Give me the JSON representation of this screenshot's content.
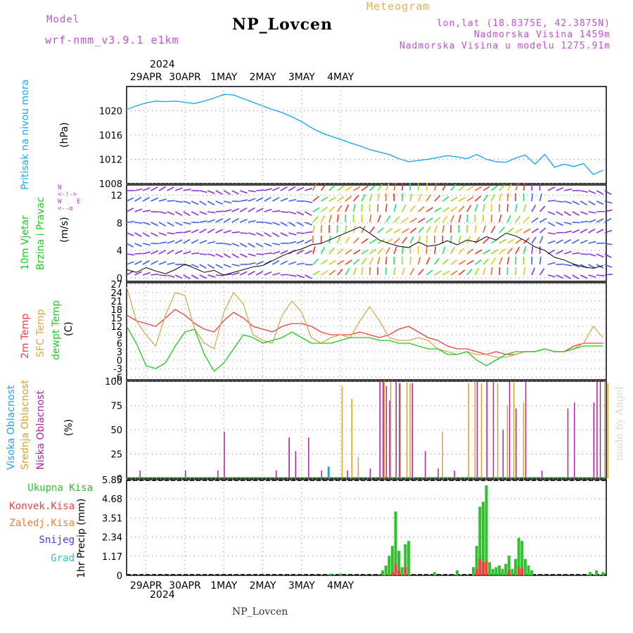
{
  "header": {
    "model_label": "Model",
    "model_name": "wrf-nmm_v3.9.1 e1km",
    "station": "NP_Lovcen",
    "meteogram": "Meteogram",
    "lonlat": "lon,lat (18.8375E, 42.3875N)",
    "elevation": "Nadmorska Visina 1459m",
    "model_elevation": "Nadmorska Visina u modelu 1275.91m",
    "year_top": "2024",
    "year_bottom": "2024",
    "footer_station": "NP_Lovcen",
    "credit": "made by Angel"
  },
  "axis_days": [
    "29APR",
    "30APR",
    "1MAY",
    "2MAY",
    "3MAY",
    "4MAY"
  ],
  "panel_labels": {
    "pressure": [
      "Pritisak na nivou mora",
      "(hPa)"
    ],
    "wind": [
      "10m Vjetar",
      "Brzina i Pravac",
      "(m/s)"
    ],
    "compass": "N\n<-!->\nW    E\n<--α",
    "temp": [
      "2m Temp",
      "SFC Temp",
      "dewpt Temp",
      "(C)"
    ],
    "cloud": [
      "Visoka Oblacnost",
      "Srednja Oblacnost",
      "Niska Oblacnost",
      "(%)"
    ],
    "precip_unit": "1hr Precip (mm)",
    "precip_legend": [
      "Ukupna Kisa",
      "Konvek.Kisa",
      "Zaledj.Kisa",
      "Snijeg",
      "Grad"
    ]
  },
  "colors": {
    "pressure": "#1eaaf0",
    "t2m": "#f04040",
    "tsfc": "#d8a850",
    "dewpt": "#22c822",
    "cloud_high": "#28a0f0",
    "cloud_mid": "#e0a030",
    "cloud_low": "#b020a0",
    "precip_total": "#30c030",
    "precip_conv": "#f04040",
    "precip_frz": "#f08030",
    "precip_snow": "#4040f0",
    "precip_grad": "#30c0c0",
    "purple": "#c050d8",
    "gold": "#e0b060",
    "green_label": "#22c822"
  },
  "chart_data": [
    {
      "type": "line",
      "name": "pressure",
      "ylim": [
        1008,
        1024
      ],
      "yticks": [
        1008,
        1012,
        1016,
        1020
      ],
      "x_hours": [
        0,
        6,
        12,
        18,
        24,
        30,
        36,
        42,
        48,
        54,
        60,
        66,
        72,
        78,
        84,
        90,
        96,
        102,
        108,
        114,
        120,
        126,
        132,
        138,
        144,
        150,
        156,
        162,
        168,
        174,
        180,
        186,
        192,
        198,
        204,
        210,
        216,
        222,
        228,
        234,
        240,
        246,
        252,
        258,
        264,
        270,
        276,
        282,
        288,
        294
      ],
      "values": [
        1020.2,
        1020.8,
        1021.3,
        1021.6,
        1021.5,
        1021.6,
        1021.4,
        1021.2,
        1021.6,
        1022.1,
        1022.7,
        1022.6,
        1022.0,
        1021.4,
        1020.8,
        1020.2,
        1019.7,
        1019.0,
        1018.2,
        1017.2,
        1016.4,
        1015.8,
        1015.3,
        1014.7,
        1014.2,
        1013.6,
        1013.2,
        1012.8,
        1012.1,
        1011.6,
        1011.8,
        1012.0,
        1012.3,
        1012.6,
        1012.4,
        1012.1,
        1012.8,
        1012.0,
        1011.6,
        1011.5,
        1012.2,
        1012.7,
        1011.2,
        1012.8,
        1010.7,
        1011.2,
        1010.8,
        1011.3,
        1009.5,
        1010.2
      ]
    },
    {
      "type": "line",
      "name": "wind_speed",
      "ylim": [
        -0.5,
        13.5
      ],
      "yticks": [
        0,
        4,
        8,
        12
      ],
      "x_hours": [
        0,
        6,
        12,
        18,
        24,
        30,
        36,
        42,
        48,
        54,
        60,
        66,
        72,
        78,
        84,
        90,
        96,
        102,
        108,
        114,
        120,
        126,
        132,
        138,
        144,
        150,
        156,
        162,
        168,
        174,
        180,
        186,
        192,
        198,
        204,
        210,
        216,
        222,
        228,
        234,
        240,
        246,
        252,
        258,
        264,
        270,
        276,
        282,
        288,
        294
      ],
      "values": [
        1.2,
        0.8,
        1.5,
        1.0,
        0.6,
        1.2,
        2.0,
        1.4,
        0.8,
        1.1,
        0.4,
        0.8,
        1.2,
        1.6,
        1.8,
        2.5,
        3.2,
        3.8,
        4.2,
        4.8,
        5.0,
        5.6,
        6.2,
        6.8,
        7.4,
        6.5,
        5.5,
        5.0,
        4.6,
        4.4,
        5.2,
        4.6,
        4.8,
        5.4,
        4.8,
        5.5,
        5.2,
        6.0,
        5.5,
        6.5,
        6.1,
        5.4,
        4.5,
        4.0,
        3.0,
        2.6,
        2.0,
        1.6,
        1.4,
        1.8
      ]
    },
    {
      "type": "line",
      "name": "temperature",
      "ylim": [
        -7,
        27.5
      ],
      "yticks": [
        -6,
        -3,
        0,
        3,
        6,
        9,
        12,
        15,
        18,
        21,
        24,
        27
      ],
      "x_hours": [
        0,
        6,
        12,
        18,
        24,
        30,
        36,
        42,
        48,
        54,
        60,
        66,
        72,
        78,
        84,
        90,
        96,
        102,
        108,
        114,
        120,
        126,
        132,
        138,
        144,
        150,
        156,
        162,
        168,
        174,
        180,
        186,
        192,
        198,
        204,
        210,
        216,
        222,
        228,
        234,
        240,
        246,
        252,
        258,
        264,
        270,
        276,
        282,
        288,
        294
      ],
      "series": [
        {
          "name": "2m Temp",
          "values": [
            16,
            14,
            13,
            12,
            15,
            18,
            16,
            13,
            11,
            10,
            14,
            17,
            15,
            12,
            11,
            10,
            12,
            13,
            13,
            12,
            10,
            9,
            9,
            9,
            10,
            9,
            8,
            9,
            11,
            12,
            10,
            8,
            7,
            5,
            4,
            4,
            3,
            2,
            3,
            2,
            2,
            3,
            3,
            4,
            3,
            3,
            5,
            6,
            6,
            6
          ]
        },
        {
          "name": "SFC Temp",
          "values": [
            26,
            14,
            9,
            5,
            16,
            24,
            23,
            11,
            6,
            4,
            17,
            24,
            20,
            9,
            7,
            6,
            16,
            21,
            17,
            8,
            6,
            8,
            9,
            8,
            14,
            19,
            14,
            8,
            7,
            7,
            8,
            7,
            4,
            3,
            2,
            3,
            2,
            2,
            1,
            1,
            2,
            3,
            3,
            4,
            3,
            3,
            4,
            6,
            12,
            8
          ]
        },
        {
          "name": "dewpt Temp",
          "values": [
            12,
            6,
            -2,
            -3,
            -1,
            5,
            10,
            11,
            2,
            -4,
            -1,
            4,
            9,
            8,
            6,
            7,
            8,
            10,
            8,
            6,
            6,
            6,
            7,
            8,
            8,
            8,
            7,
            7,
            6,
            6,
            5,
            4,
            4,
            2,
            2,
            3,
            0,
            -2,
            0,
            2,
            3,
            3,
            3,
            4,
            3,
            3,
            4,
            5,
            5,
            5
          ]
        }
      ]
    },
    {
      "type": "bar",
      "name": "cloud_cover",
      "ylim": [
        0,
        100
      ],
      "yticks": [
        0,
        25,
        50,
        75,
        100
      ],
      "series": [
        {
          "name": "Niska Oblacnost",
          "points": [
            [
              8,
              8
            ],
            [
              36,
              8
            ],
            [
              60,
              48
            ],
            [
              56,
              8
            ],
            [
              92,
              8
            ],
            [
              100,
              40
            ],
            [
              104,
              28
            ],
            [
              100,
              42
            ],
            [
              112,
              42
            ],
            [
              120,
              8
            ],
            [
              136,
              8
            ],
            [
              150,
              10
            ],
            [
              156,
              100
            ],
            [
              158,
              100
            ],
            [
              160,
              95
            ],
            [
              162,
              80
            ],
            [
              166,
              100
            ],
            [
              168,
              98
            ],
            [
              176,
              98
            ],
            [
              184,
              28
            ],
            [
              192,
              10
            ],
            [
              202,
              8
            ],
            [
              216,
              100
            ],
            [
              222,
              100
            ],
            [
              226,
              100
            ],
            [
              232,
              50
            ],
            [
              236,
              100
            ],
            [
              240,
              72
            ],
            [
              246,
              100
            ],
            [
              256,
              8
            ],
            [
              272,
              72
            ],
            [
              276,
              78
            ],
            [
              288,
              78
            ],
            [
              290,
              100
            ],
            [
              292,
              100
            ]
          ]
        },
        {
          "name": "Srednja Oblacnost",
          "points": [
            [
              132,
              95
            ],
            [
              138,
              82
            ],
            [
              142,
              22
            ],
            [
              158,
              100
            ],
            [
              162,
              100
            ],
            [
              168,
              98
            ],
            [
              172,
              100
            ],
            [
              174,
              98
            ],
            [
              194,
              48
            ],
            [
              210,
              98
            ],
            [
              214,
              100
            ],
            [
              218,
              98
            ],
            [
              228,
              98
            ],
            [
              234,
              75
            ],
            [
              238,
              100
            ],
            [
              244,
              78
            ],
            [
              294,
              100
            ],
            [
              296,
              98
            ]
          ]
        },
        {
          "name": "Visoka Oblacnost",
          "points": [
            [
              124,
              12
            ]
          ]
        }
      ]
    },
    {
      "type": "bar",
      "name": "precipitation",
      "ylim": [
        0,
        5.85
      ],
      "yticks": [
        0,
        1.17,
        2.34,
        3.51,
        4.68,
        5.85
      ],
      "series": [
        {
          "name": "Ukupna Kisa",
          "points": [
            [
              126,
              0.1
            ],
            [
              132,
              0.1
            ],
            [
              158,
              0.3
            ],
            [
              160,
              0.6
            ],
            [
              162,
              1.2
            ],
            [
              164,
              1.8
            ],
            [
              166,
              3.9
            ],
            [
              168,
              1.5
            ],
            [
              170,
              0.5
            ],
            [
              172,
              1.9
            ],
            [
              174,
              2.1
            ],
            [
              190,
              0.2
            ],
            [
              204,
              0.3
            ],
            [
              214,
              0.5
            ],
            [
              216,
              1.8
            ],
            [
              218,
              4.2
            ],
            [
              220,
              4.5
            ],
            [
              222,
              5.5
            ],
            [
              224,
              0.8
            ],
            [
              226,
              0.4
            ],
            [
              228,
              0.5
            ],
            [
              230,
              0.6
            ],
            [
              232,
              0.4
            ],
            [
              234,
              0.7
            ],
            [
              236,
              1.2
            ],
            [
              238,
              0.4
            ],
            [
              240,
              1.0
            ],
            [
              242,
              2.3
            ],
            [
              244,
              2.1
            ],
            [
              246,
              1.0
            ],
            [
              248,
              0.6
            ],
            [
              250,
              0.3
            ],
            [
              286,
              0.2
            ],
            [
              290,
              0.3
            ],
            [
              294,
              0.2
            ]
          ]
        },
        {
          "name": "Konvek.Kisa",
          "points": [
            [
              164,
              0.2
            ],
            [
              166,
              0.7
            ],
            [
              168,
              0.3
            ],
            [
              172,
              0.5
            ],
            [
              216,
              0.4
            ],
            [
              218,
              1.0
            ],
            [
              220,
              0.8
            ],
            [
              222,
              0.9
            ],
            [
              236,
              0.3
            ],
            [
              242,
              0.5
            ],
            [
              244,
              0.4
            ]
          ]
        }
      ]
    }
  ]
}
